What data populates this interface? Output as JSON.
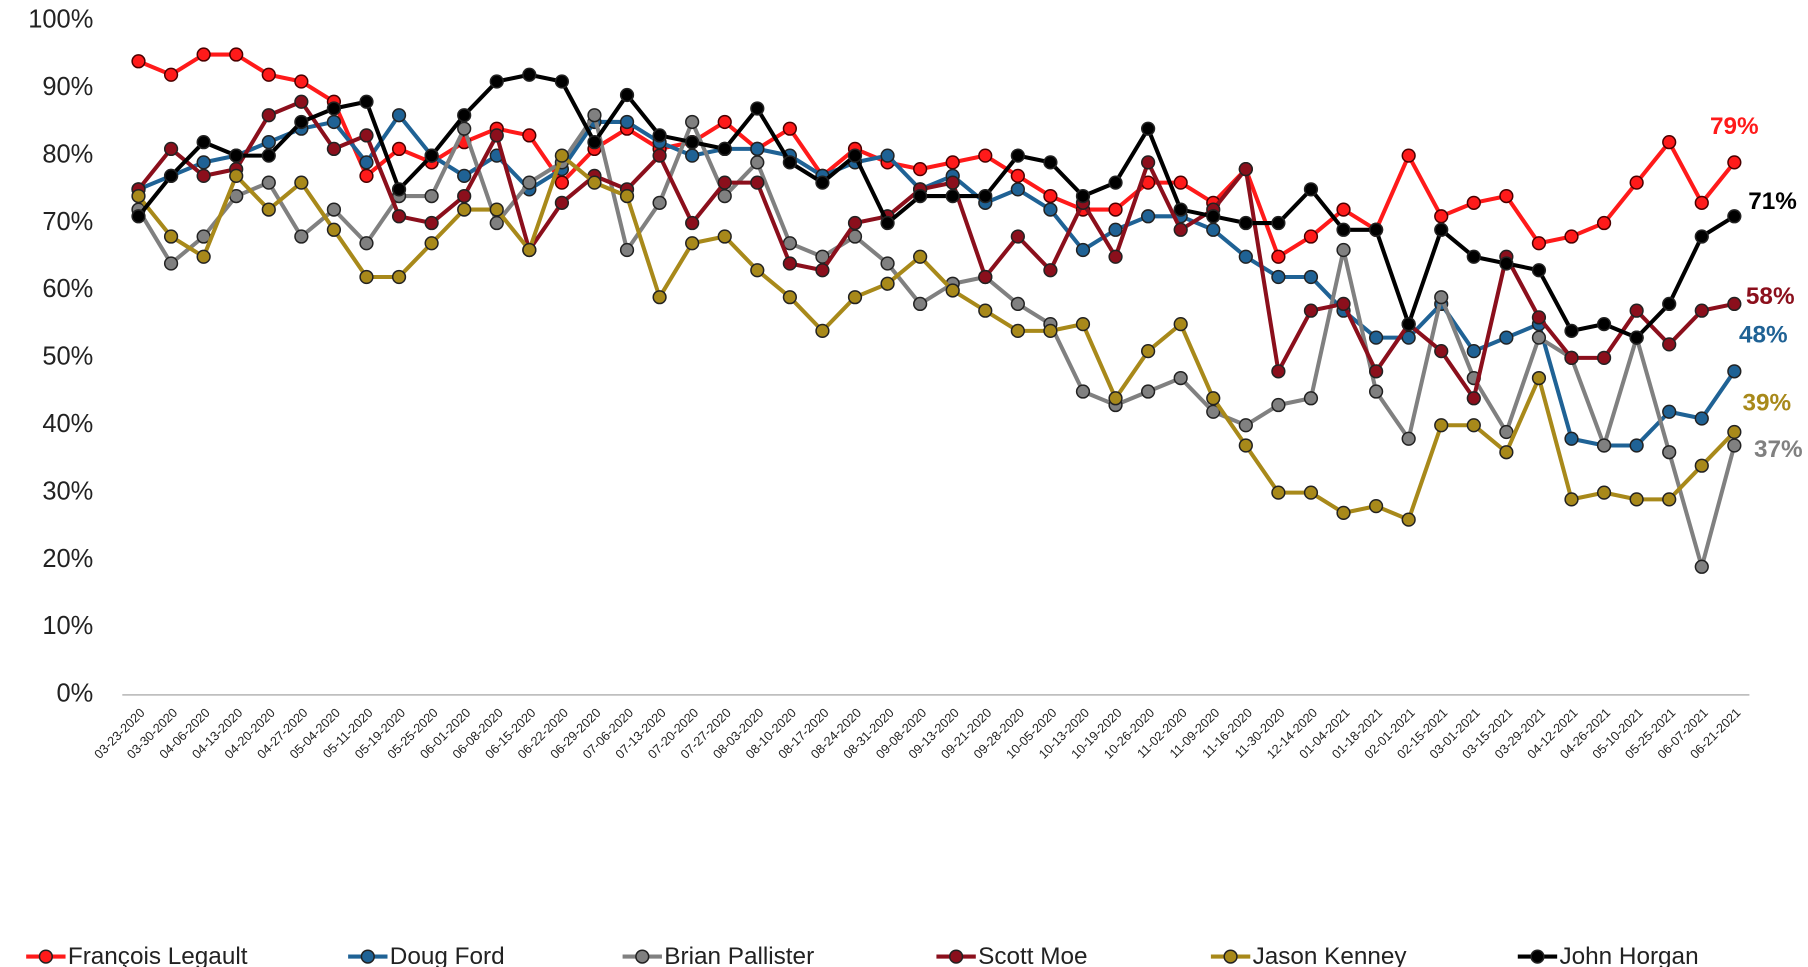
{
  "chart_data": {
    "type": "line",
    "x": [
      "03-23-2020",
      "03-30-2020",
      "04-06-2020",
      "04-13-2020",
      "04-20-2020",
      "04-27-2020",
      "05-04-2020",
      "05-11-2020",
      "05-19-2020",
      "05-25-2020",
      "06-01-2020",
      "06-08-2020",
      "06-15-2020",
      "06-22-2020",
      "06-29-2020",
      "07-06-2020",
      "07-13-2020",
      "07-20-2020",
      "07-27-2020",
      "08-03-2020",
      "08-10-2020",
      "08-17-2020",
      "08-24-2020",
      "08-31-2020",
      "09-08-2020",
      "09-13-2020",
      "09-21-2020",
      "09-28-2020",
      "10-05-2020",
      "10-13-2020",
      "10-19-2020",
      "10-26-2020",
      "11-02-2020",
      "11-09-2020",
      "11-16-2020",
      "11-30-2020",
      "12-14-2020",
      "01-04-2021",
      "01-18-2021",
      "02-01-2021",
      "02-15-2021",
      "03-01-2021",
      "03-15-2021",
      "03-29-2021",
      "04-12-2021",
      "04-26-2021",
      "05-10-2021",
      "05-25-2021",
      "06-07-2021",
      "06-21-2021"
    ],
    "series": [
      {
        "name": "François Legault",
        "color": "#ff1a1a",
        "end_label": "79%",
        "values": [
          94,
          92,
          95,
          95,
          92,
          91,
          88,
          77,
          81,
          79,
          82,
          84,
          83,
          76,
          81,
          84,
          81,
          82,
          85,
          81,
          84,
          77,
          81,
          79,
          78,
          79,
          80,
          77,
          74,
          72,
          72,
          76,
          76,
          73,
          78,
          65,
          68,
          72,
          69,
          80,
          71,
          73,
          74,
          67,
          68,
          70,
          76,
          82,
          73,
          79
        ]
      },
      {
        "name": "Doug Ford",
        "color": "#1f6295",
        "end_label": "48%",
        "values": [
          75,
          77,
          79,
          80,
          82,
          84,
          85,
          79,
          86,
          80,
          77,
          80,
          75,
          78,
          85,
          85,
          82,
          80,
          81,
          81,
          80,
          77,
          79,
          80,
          75,
          77,
          73,
          75,
          72,
          66,
          69,
          71,
          71,
          69,
          65,
          62,
          62,
          57,
          53,
          53,
          58,
          51,
          53,
          55,
          38,
          37,
          37,
          42,
          41,
          48
        ]
      },
      {
        "name": "Brian Pallister",
        "color": "#808080",
        "end_label": "37%",
        "values": [
          72,
          64,
          68,
          74,
          76,
          68,
          72,
          67,
          74,
          74,
          84,
          70,
          76,
          79,
          86,
          66,
          73,
          85,
          74,
          79,
          67,
          65,
          68,
          64,
          58,
          61,
          62,
          58,
          55,
          45,
          43,
          45,
          47,
          42,
          40,
          43,
          44,
          66,
          45,
          38,
          59,
          47,
          39,
          53,
          50,
          37,
          53,
          36,
          19,
          37
        ]
      },
      {
        "name": "Scott Moe",
        "color": "#8b0f1c",
        "end_label": "58%",
        "values": [
          75,
          81,
          77,
          78,
          86,
          88,
          81,
          83,
          71,
          70,
          74,
          83,
          66,
          73,
          77,
          75,
          80,
          70,
          76,
          76,
          64,
          63,
          70,
          71,
          75,
          76,
          62,
          68,
          63,
          73,
          65,
          79,
          69,
          72,
          78,
          48,
          57,
          58,
          48,
          55,
          51,
          44,
          65,
          56,
          50,
          50,
          57,
          52,
          57,
          58
        ]
      },
      {
        "name": "Jason Kenney",
        "color": "#a8891a",
        "end_label": "39%",
        "values": [
          74,
          68,
          65,
          77,
          72,
          76,
          69,
          62,
          62,
          67,
          72,
          72,
          66,
          80,
          76,
          74,
          59,
          67,
          68,
          63,
          59,
          54,
          59,
          61,
          65,
          60,
          57,
          54,
          54,
          55,
          44,
          51,
          55,
          44,
          37,
          30,
          30,
          27,
          28,
          26,
          40,
          40,
          36,
          47,
          29,
          30,
          29,
          29,
          34,
          39
        ]
      },
      {
        "name": "John Horgan",
        "color": "#000000",
        "end_label": "71%",
        "values": [
          71,
          77,
          82,
          80,
          80,
          85,
          87,
          88,
          75,
          80,
          86,
          91,
          92,
          91,
          82,
          89,
          83,
          82,
          81,
          87,
          79,
          76,
          80,
          70,
          74,
          74,
          74,
          80,
          79,
          74,
          76,
          84,
          72,
          71,
          70,
          70,
          75,
          69,
          69,
          55,
          69,
          65,
          64,
          63,
          54,
          55,
          53,
          58,
          68,
          71
        ]
      }
    ],
    "ylim": [
      0,
      100
    ],
    "yticks": [
      {
        "value": 0,
        "label": "0%"
      },
      {
        "value": 10,
        "label": "10%"
      },
      {
        "value": 20,
        "label": "20%"
      },
      {
        "value": 30,
        "label": "30%"
      },
      {
        "value": 40,
        "label": "40%"
      },
      {
        "value": 50,
        "label": "50%"
      },
      {
        "value": 60,
        "label": "60%"
      },
      {
        "value": 70,
        "label": "70%"
      },
      {
        "value": 80,
        "label": "80%"
      },
      {
        "value": 90,
        "label": "90%"
      },
      {
        "value": 100,
        "label": "100%"
      }
    ],
    "grid": false,
    "legend": "bottom"
  }
}
